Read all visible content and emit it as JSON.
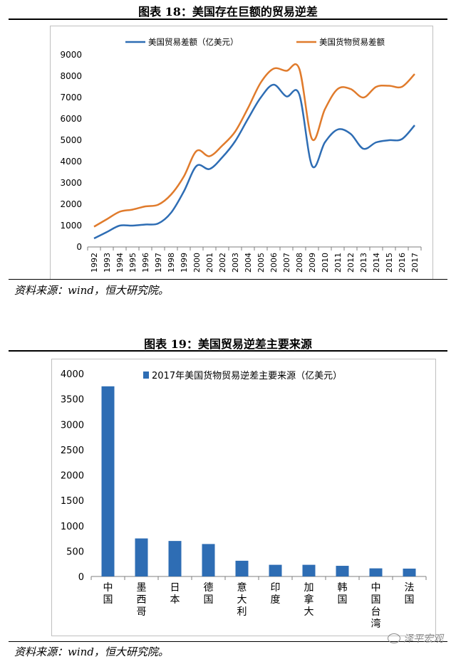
{
  "figure1": {
    "title": "图表 18：美国存在巨额的贸易逆差",
    "source": "资料来源：wind，恒大研究院。"
  },
  "figure2": {
    "title": "图表 19：美国贸易逆差主要来源",
    "source": "资料来源：wind，恒大研究院。"
  },
  "watermark": "泽平宏观",
  "colors": {
    "series_blue": "#2e6db4",
    "series_orange": "#e07b2c",
    "bar_blue": "#2e6db4"
  },
  "chart_data": [
    {
      "type": "line",
      "title": "",
      "xlabel": "",
      "ylabel": "",
      "x": [
        "1992",
        "1993",
        "1994",
        "1995",
        "1996",
        "1997",
        "1998",
        "1999",
        "2000",
        "2001",
        "2002",
        "2003",
        "2004",
        "2005",
        "2006",
        "2007",
        "2008",
        "2009",
        "2010",
        "2011",
        "2012",
        "2013",
        "2014",
        "2015",
        "2016",
        "2017"
      ],
      "series": [
        {
          "name": "美国贸易差额（亿美元）",
          "color": "#2e6db4",
          "values": [
            400,
            700,
            1000,
            1000,
            1050,
            1100,
            1600,
            2600,
            3800,
            3650,
            4200,
            4950,
            6000,
            7000,
            7600,
            7050,
            7150,
            3800,
            4900,
            5500,
            5300,
            4600,
            4900,
            5000,
            5050,
            5700
          ]
        },
        {
          "name": "美国货物贸易差额",
          "color": "#e07b2c",
          "values": [
            950,
            1300,
            1650,
            1750,
            1900,
            1980,
            2450,
            3300,
            4500,
            4250,
            4750,
            5400,
            6500,
            7700,
            8350,
            8250,
            8350,
            5050,
            6450,
            7400,
            7400,
            7000,
            7500,
            7550,
            7500,
            8100
          ]
        }
      ],
      "ylim": [
        0,
        9000
      ],
      "yticks": [
        0,
        1000,
        2000,
        3000,
        4000,
        5000,
        6000,
        7000,
        8000,
        9000
      ],
      "grid": false,
      "legend": "top"
    },
    {
      "type": "bar",
      "title": "",
      "xlabel": "",
      "ylabel": "",
      "categories": [
        "中国",
        "墨西哥",
        "日本",
        "德国",
        "意大利",
        "印度",
        "加拿大",
        "韩国",
        "中国台湾",
        "法国"
      ],
      "series": [
        {
          "name": "2017年美国货物贸易逆差主要来源（亿美元）",
          "color": "#2e6db4",
          "values": [
            3750,
            750,
            700,
            640,
            310,
            230,
            230,
            210,
            160,
            155
          ]
        }
      ],
      "ylim": [
        0,
        4000
      ],
      "yticks": [
        0,
        500,
        1000,
        1500,
        2000,
        2500,
        3000,
        3500,
        4000
      ],
      "grid": false,
      "legend": "top"
    }
  ]
}
